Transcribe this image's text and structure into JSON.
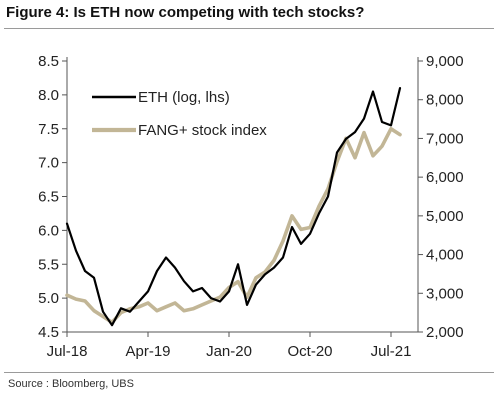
{
  "title": "Figure 4: Is ETH now competing with tech stocks?",
  "source": "Source : Bloomberg, UBS",
  "chart_data": {
    "type": "line",
    "x_ticks": [
      "Jul-18",
      "Apr-19",
      "Jan-20",
      "Oct-20",
      "Jul-21"
    ],
    "y_left": {
      "label": "",
      "range": [
        4.5,
        8.5
      ],
      "ticks": [
        "4.5",
        "5.0",
        "5.5",
        "6.0",
        "6.5",
        "7.0",
        "7.5",
        "8.0",
        "8.5"
      ]
    },
    "y_right": {
      "label": "",
      "range": [
        2000,
        9000
      ],
      "ticks": [
        "2,000",
        "3,000",
        "4,000",
        "5,000",
        "6,000",
        "7,000",
        "8,000",
        "9,000"
      ]
    },
    "grid": false,
    "legend_position": "top-left",
    "series": [
      {
        "name": "ETH (log, lhs)",
        "axis": "left",
        "color": "#000000",
        "x": [
          "2018-07",
          "2018-08",
          "2018-09",
          "2018-10",
          "2018-11",
          "2018-12",
          "2019-01",
          "2019-02",
          "2019-03",
          "2019-04",
          "2019-05",
          "2019-06",
          "2019-07",
          "2019-08",
          "2019-09",
          "2019-10",
          "2019-11",
          "2019-12",
          "2020-01",
          "2020-02",
          "2020-03",
          "2020-04",
          "2020-05",
          "2020-06",
          "2020-07",
          "2020-08",
          "2020-09",
          "2020-10",
          "2020-11",
          "2020-12",
          "2021-01",
          "2021-02",
          "2021-03",
          "2021-04",
          "2021-05",
          "2021-06",
          "2021-07",
          "2021-08"
        ],
        "values": [
          6.1,
          5.7,
          5.4,
          5.3,
          4.8,
          4.6,
          4.85,
          4.8,
          4.95,
          5.1,
          5.4,
          5.6,
          5.45,
          5.25,
          5.1,
          5.15,
          5.0,
          4.95,
          5.1,
          5.5,
          4.9,
          5.2,
          5.35,
          5.45,
          5.6,
          6.05,
          5.8,
          5.95,
          6.25,
          6.5,
          7.15,
          7.35,
          7.45,
          7.65,
          8.05,
          7.6,
          7.55,
          8.1
        ]
      },
      {
        "name": "FANG+ stock index",
        "axis": "right",
        "color": "#c2b696",
        "x": [
          "2018-07",
          "2018-08",
          "2018-09",
          "2018-10",
          "2018-11",
          "2018-12",
          "2019-01",
          "2019-02",
          "2019-03",
          "2019-04",
          "2019-05",
          "2019-06",
          "2019-07",
          "2019-08",
          "2019-09",
          "2019-10",
          "2019-11",
          "2019-12",
          "2020-01",
          "2020-02",
          "2020-03",
          "2020-04",
          "2020-05",
          "2020-06",
          "2020-07",
          "2020-08",
          "2020-09",
          "2020-10",
          "2020-11",
          "2020-12",
          "2021-01",
          "2021-02",
          "2021-03",
          "2021-04",
          "2021-05",
          "2021-06",
          "2021-07",
          "2021-08"
        ],
        "values": [
          2950,
          2850,
          2800,
          2550,
          2400,
          2250,
          2500,
          2600,
          2650,
          2750,
          2550,
          2650,
          2750,
          2550,
          2600,
          2700,
          2800,
          2900,
          3150,
          3300,
          2900,
          3400,
          3550,
          3850,
          4350,
          5000,
          4650,
          4700,
          5250,
          5700,
          6400,
          7000,
          6500,
          7150,
          6550,
          6800,
          7250,
          7100
        ]
      }
    ]
  }
}
